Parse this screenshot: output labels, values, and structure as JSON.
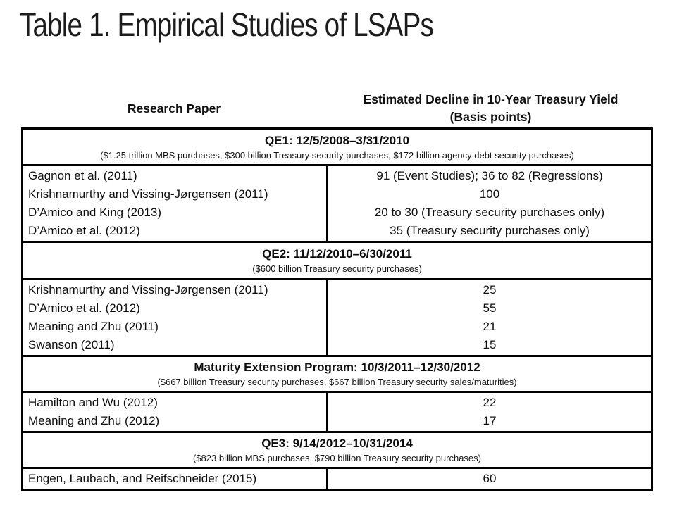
{
  "slide": {
    "title": "Table 1. Empirical Studies of LSAPs"
  },
  "table": {
    "column_headers": {
      "left": "Research Paper",
      "right_line1": "Estimated Decline in 10-Year Treasury Yield",
      "right_line2": "(Basis points)"
    },
    "sections": [
      {
        "header": "QE1: 12/5/2008–3/31/2010",
        "subtitle": "($1.25 trillion MBS purchases, $300 billion Treasury security purchases, $172 billion agency debt security purchases)",
        "rows": [
          {
            "paper": "Gagnon et al. (2011)",
            "estimate": "91 (Event Studies); 36 to 82 (Regressions)"
          },
          {
            "paper": "Krishnamurthy and Vissing-Jørgensen (2011)",
            "estimate": "100"
          },
          {
            "paper": "D’Amico and King (2013)",
            "estimate": "20 to 30 (Treasury security purchases only)"
          },
          {
            "paper": "D’Amico et al. (2012)",
            "estimate": "35 (Treasury security purchases only)"
          }
        ]
      },
      {
        "header": "QE2: 11/12/2010–6/30/2011",
        "subtitle": "($600 billion Treasury security purchases)",
        "rows": [
          {
            "paper": "Krishnamurthy and Vissing-Jørgensen (2011)",
            "estimate": "25"
          },
          {
            "paper": "D’Amico et al. (2012)",
            "estimate": "55"
          },
          {
            "paper": "Meaning and Zhu (2011)",
            "estimate": "21"
          },
          {
            "paper": "Swanson (2011)",
            "estimate": "15"
          }
        ]
      },
      {
        "header": "Maturity Extension Program: 10/3/2011–12/30/2012",
        "subtitle": "($667 billion Treasury security purchases, $667 billion Treasury security sales/maturities)",
        "rows": [
          {
            "paper": "Hamilton and Wu (2012)",
            "estimate": "22"
          },
          {
            "paper": "Meaning and Zhu (2012)",
            "estimate": "17"
          }
        ]
      },
      {
        "header": "QE3: 9/14/2012–10/31/2014",
        "subtitle": "($823 billion MBS purchases, $790 billion Treasury security purchases)",
        "rows": [
          {
            "paper": "Engen, Laubach, and Reifschneider (2015)",
            "estimate": "60"
          }
        ]
      }
    ]
  },
  "colors": {
    "background": "#ffffff",
    "text": "#111111",
    "border": "#000000"
  }
}
